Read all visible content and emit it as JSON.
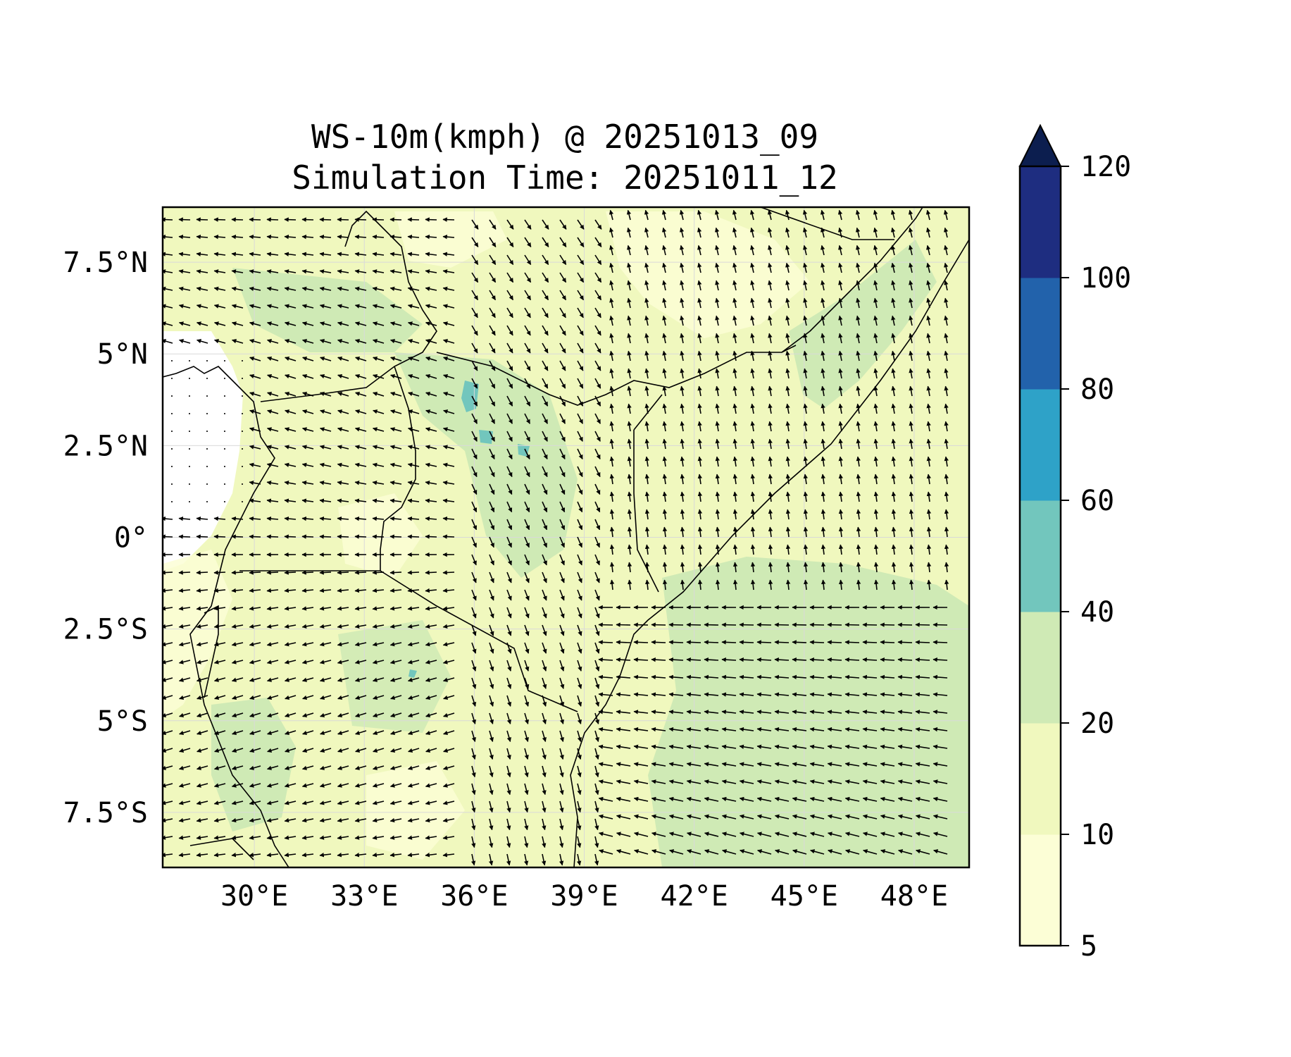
{
  "figure": {
    "title_line1": "WS-10m(kmph) @ 20251013_09",
    "title_line2": "Simulation Time: 20251011_12"
  },
  "map": {
    "lon_range": [
      27.5,
      49.5
    ],
    "lat_range": [
      -9.0,
      9.0
    ],
    "lon_ticks": [
      {
        "value": 30,
        "label": "30°E"
      },
      {
        "value": 33,
        "label": "33°E"
      },
      {
        "value": 36,
        "label": "36°E"
      },
      {
        "value": 39,
        "label": "39°E"
      },
      {
        "value": 42,
        "label": "42°E"
      },
      {
        "value": 45,
        "label": "45°E"
      },
      {
        "value": 48,
        "label": "48°E"
      }
    ],
    "lat_ticks": [
      {
        "value": 7.5,
        "label": "7.5°N"
      },
      {
        "value": 5,
        "label": "5°N"
      },
      {
        "value": 2.5,
        "label": "2.5°N"
      },
      {
        "value": 0,
        "label": "0°"
      },
      {
        "value": -2.5,
        "label": "2.5°S"
      },
      {
        "value": -5,
        "label": "5°S"
      },
      {
        "value": -7.5,
        "label": "7.5°S"
      }
    ],
    "gridlines": true,
    "coastline_color": "#000000",
    "border_color": "#000000"
  },
  "colorbar": {
    "levels": [
      5,
      10,
      20,
      40,
      60,
      80,
      100,
      120
    ],
    "labels": [
      "5",
      "10",
      "20",
      "40",
      "60",
      "80",
      "100",
      "120"
    ],
    "colors": [
      "#fcfed6",
      "#f0f8be",
      "#cfeab5",
      "#72c6bd",
      "#2ea2c8",
      "#2262ab",
      "#1e2d80"
    ],
    "extend_color": "#0c1e4f",
    "extend": "max"
  },
  "field_colors": {
    "calm": "#ffffff",
    "light": "#fcfed6",
    "moderate": "#f0f8be",
    "fresh": "#cfeab5",
    "strong": "#72c6bd"
  }
}
